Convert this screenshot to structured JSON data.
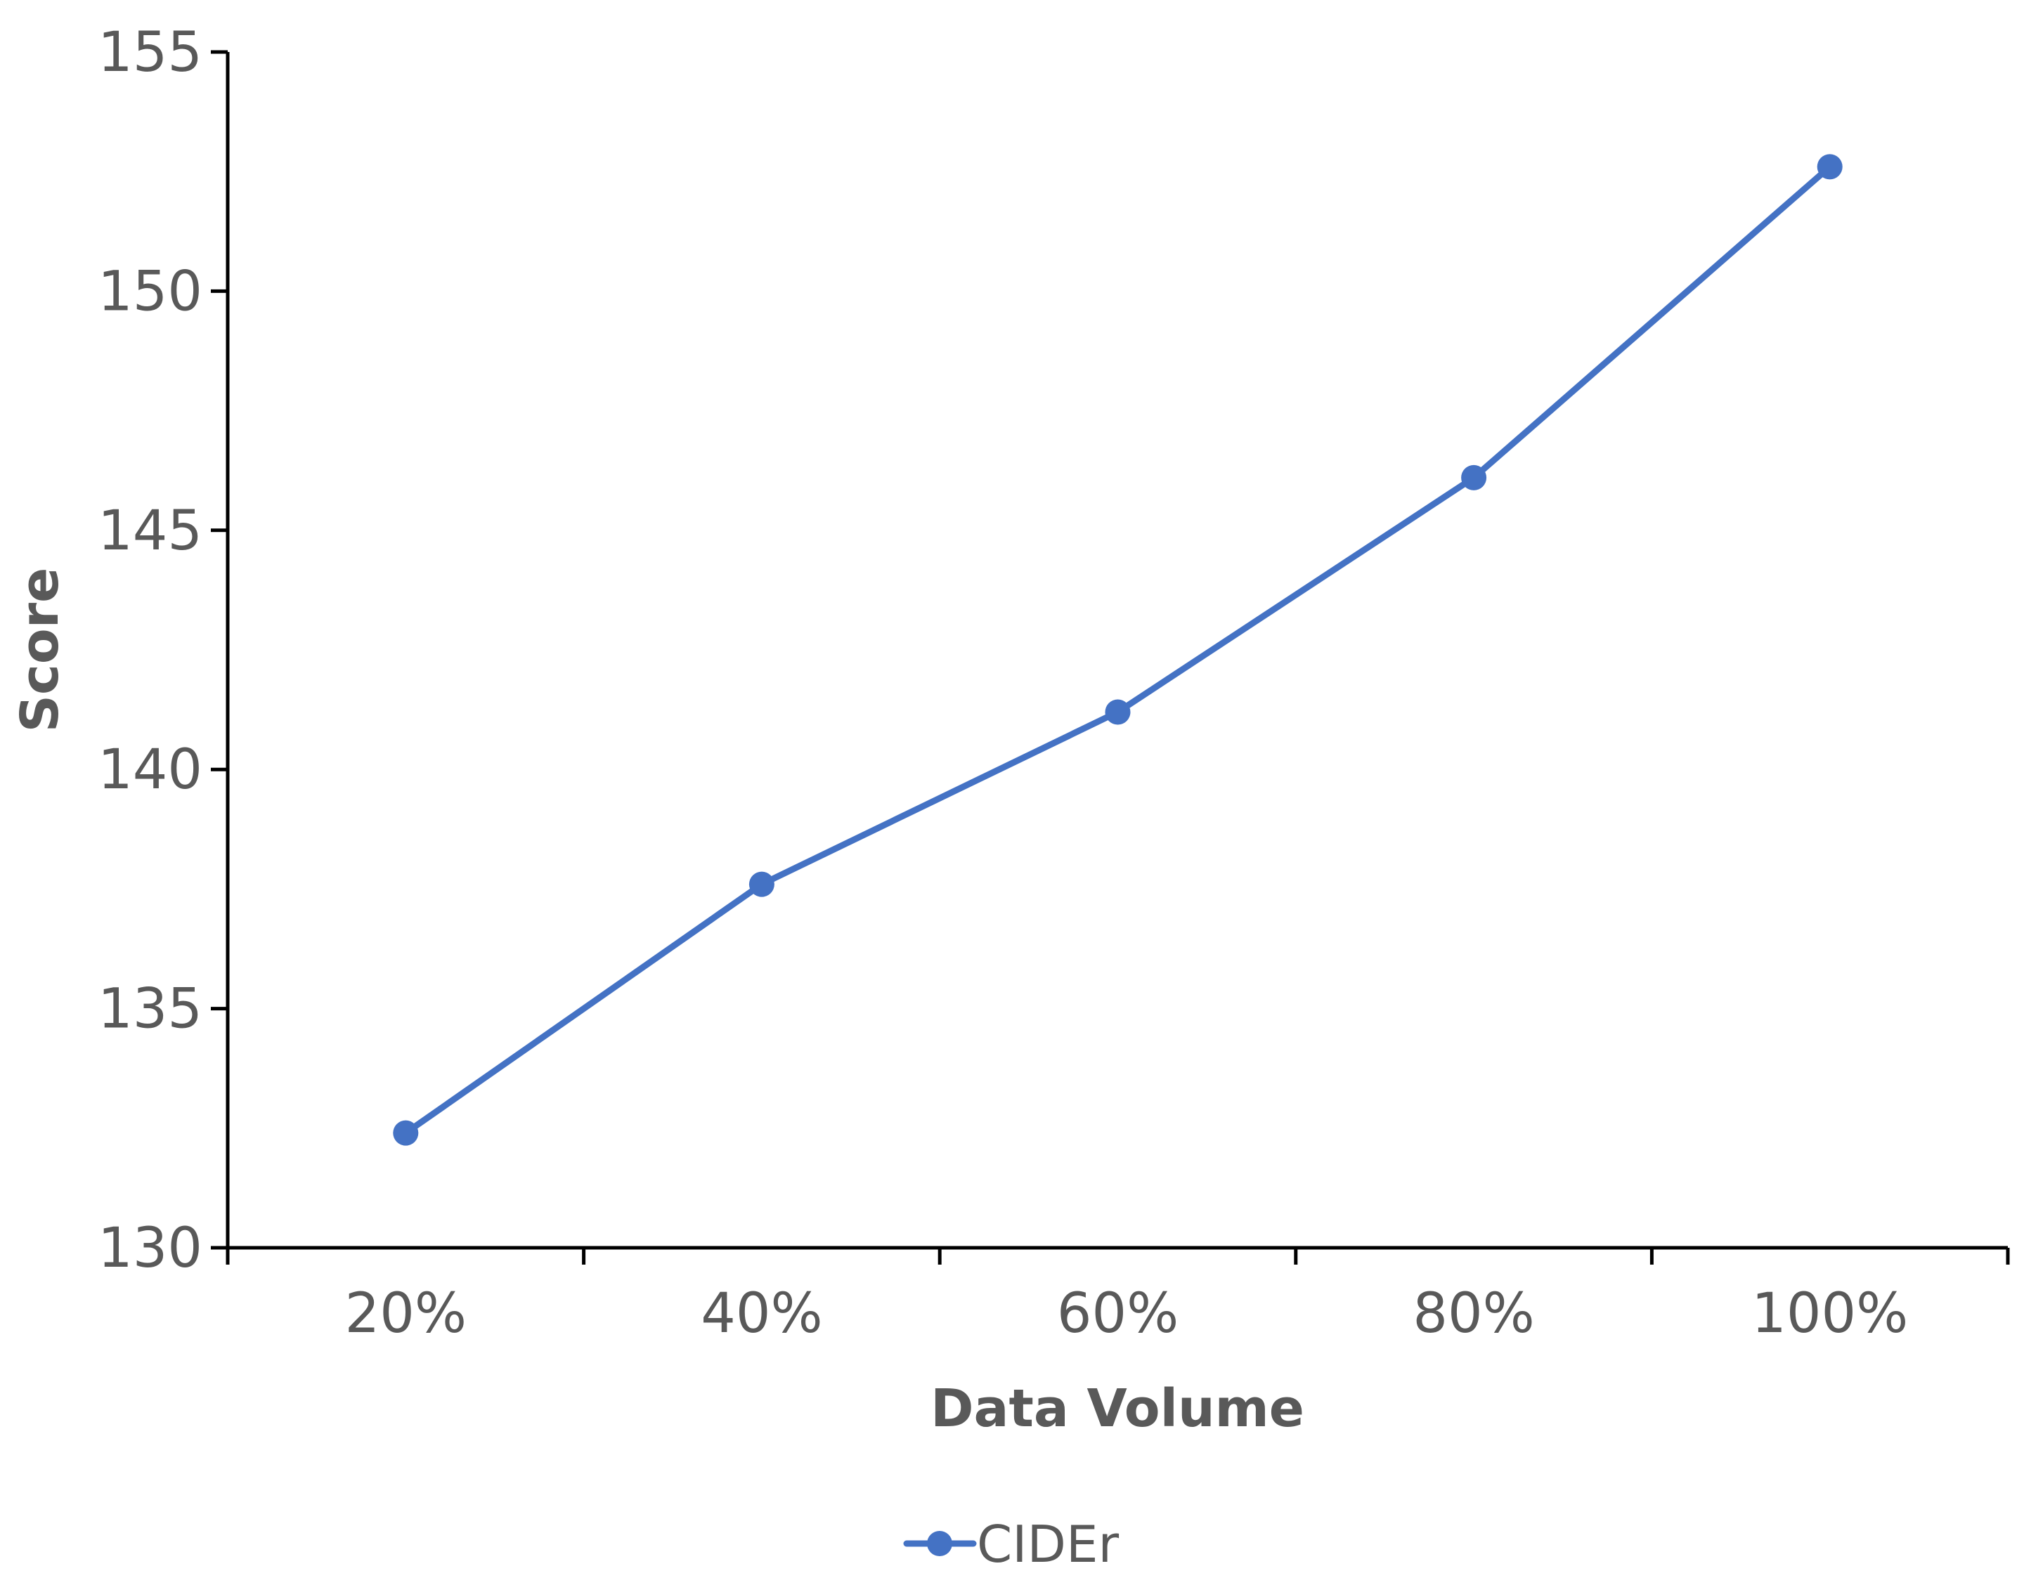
{
  "chart_data": {
    "type": "line",
    "categories": [
      "20%",
      "40%",
      "60%",
      "80%",
      "100%"
    ],
    "series": [
      {
        "name": "CIDEr",
        "values": [
          132.4,
          137.6,
          141.2,
          146.1,
          152.6
        ],
        "color": "#4472C4"
      }
    ],
    "xlabel": "Data Volume",
    "ylabel": "Score",
    "ylim": [
      130,
      155
    ],
    "yticks": [
      "130",
      "135",
      "140",
      "145",
      "150",
      "155"
    ],
    "grid": false,
    "legend": "bottom-center"
  }
}
